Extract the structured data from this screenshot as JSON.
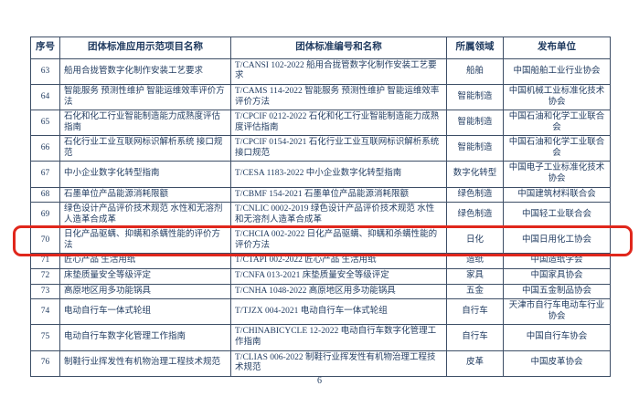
{
  "page": {
    "page_number": "6",
    "accent_red": "#e0271c",
    "text_color": "#1f3a5f"
  },
  "table": {
    "headers": [
      "序号",
      "团体标准应用示范项目名称",
      "团体标准编号和名称",
      "所属领域",
      "发布单位"
    ],
    "rows": [
      {
        "no": "63",
        "project": "船用合拢管数字化制作安装工艺要求",
        "standard": "T/CANSI 102-2022  船用合拢管数字化制作安装工艺要求",
        "field": "船舶",
        "publisher": "中国船舶工业行业协会",
        "highlighted": false
      },
      {
        "no": "64",
        "project": "智能服务 预测性维护 智能运维效率评价方法",
        "standard": "T/CAMS 114-2022  智能服务 预测性维护 智能运维效率评价方法",
        "field": "智能制造",
        "publisher": "中国机械工业标准化技术协会",
        "highlighted": false
      },
      {
        "no": "65",
        "project": "石化和化工行业智能制造能力成熟度评估指南",
        "standard": "T/CPCIF 0212-2022  石化和化工行业智能制造能力成熟度评估指南",
        "field": "智能制造",
        "publisher": "中国石油和化学工业联合会",
        "highlighted": false
      },
      {
        "no": "66",
        "project": "石化行业工业互联网标识解析系统 接口规范",
        "standard": "T/CPCIF 0154-2021  石化行业工业互联网标识解析系统 接口规范",
        "field": "智能制造",
        "publisher": "中国石油和化学工业联合会",
        "highlighted": false
      },
      {
        "no": "67",
        "project": "中小企业数字化转型指南",
        "standard": "T/CESA 1183-2022  中小企业数字化转型指南",
        "field": "数字化转型",
        "publisher": "中国电子工业标准化技术协会",
        "highlighted": false
      },
      {
        "no": "68",
        "project": "石墨单位产品能源消耗限额",
        "standard": "T/CBMF 154-2021  石墨单位产品能源消耗限额",
        "field": "绿色制造",
        "publisher": "中国建筑材料联合会",
        "highlighted": false
      },
      {
        "no": "69",
        "project": "绿色设计产品评价技术规范 水性和无溶剂人造革合成革",
        "standard": "T/CNLIC 0002-2019  绿色设计产品评价技术规范 水性和无溶剂人造革合成革",
        "field": "绿色制造",
        "publisher": "中国轻工业联合会",
        "highlighted": false
      },
      {
        "no": "70",
        "project": "日化产品驱螨、抑螨和杀螨性能的评价方法",
        "standard": "T/CHCIA 002-2022  日化产品驱螨、抑螨和杀螨性能的评价方法",
        "field": "日化",
        "publisher": "中国日用化工协会",
        "highlighted": true
      },
      {
        "no": "71",
        "project": "匠心产品 生活用纸",
        "standard": "T/CTAPI 002-2022  匠心产品 生活用纸",
        "field": "造纸",
        "publisher": "中国造纸学会",
        "highlighted": false
      },
      {
        "no": "72",
        "project": "床垫质量安全等级评定",
        "standard": "T/CNFA 013-2021  床垫质量安全等级评定",
        "field": "家具",
        "publisher": "中国家具协会",
        "highlighted": false
      },
      {
        "no": "73",
        "project": "高原地区用多功能锅具",
        "standard": "T/CNHA 1048-2022  高原地区用多功能锅具",
        "field": "五金",
        "publisher": "中国五金制品协会",
        "highlighted": false
      },
      {
        "no": "74",
        "project": "电动自行车一体式轮组",
        "standard": "T/TJZX 004-2021  电动自行车一体式轮组",
        "field": "自行车",
        "publisher": "天津市自行车电动车行业协会",
        "highlighted": false
      },
      {
        "no": "75",
        "project": "电动自行车数字化管理工作指南",
        "standard": "T/CHINABICYCLE 12-2022  电动自行车数字化管理工作指南",
        "field": "自行车",
        "publisher": "中国自行车协会",
        "highlighted": false
      },
      {
        "no": "76",
        "project": "制鞋行业挥发性有机物治理工程技术规范",
        "standard": "T/CLIAS 006-2022  制鞋行业挥发性有机物治理工程技术规范",
        "field": "皮革",
        "publisher": "中国皮革协会",
        "highlighted": false
      }
    ]
  }
}
